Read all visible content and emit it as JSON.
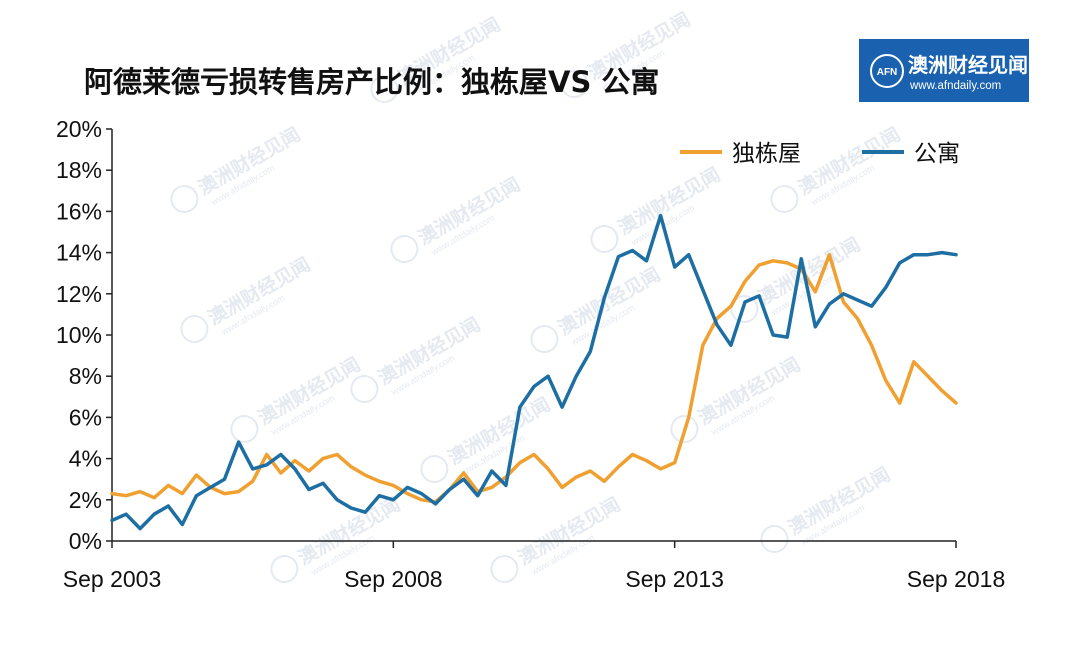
{
  "title": "阿德莱德亏损转售房产比例：独栋屋VS 公寓",
  "logo": {
    "badge": "AFN",
    "name": "澳洲财经见闻",
    "url": "www.afndaily.com"
  },
  "colors": {
    "house": "#f0a030",
    "unit": "#1d6fa3",
    "logo_bg": "#1a62b0"
  },
  "chart_data": {
    "type": "line",
    "title": "阿德莱德亏损转售房产比例：独栋屋VS 公寓",
    "ylim": [
      0,
      20
    ],
    "y_ticks": [
      "0%",
      "2%",
      "4%",
      "6%",
      "8%",
      "10%",
      "12%",
      "14%",
      "16%",
      "18%",
      "20%"
    ],
    "x_ticks": [
      "Sep 2003",
      "Sep 2008",
      "Sep 2013",
      "Sep 2018"
    ],
    "x_tick_positions": [
      2003.67,
      2008.67,
      2013.67,
      2018.67
    ],
    "xlim": [
      2003.67,
      2018.67
    ],
    "grid": false,
    "legend_position": "top-right",
    "series": [
      {
        "name": "独栋屋",
        "color": "#f0a030",
        "points": [
          [
            2003.67,
            2.3
          ],
          [
            2003.92,
            2.2
          ],
          [
            2004.17,
            2.4
          ],
          [
            2004.42,
            2.1
          ],
          [
            2004.67,
            2.7
          ],
          [
            2004.92,
            2.3
          ],
          [
            2005.17,
            3.2
          ],
          [
            2005.42,
            2.6
          ],
          [
            2005.67,
            2.3
          ],
          [
            2005.92,
            2.4
          ],
          [
            2006.17,
            2.9
          ],
          [
            2006.42,
            4.2
          ],
          [
            2006.67,
            3.3
          ],
          [
            2006.92,
            3.9
          ],
          [
            2007.17,
            3.4
          ],
          [
            2007.42,
            4.0
          ],
          [
            2007.67,
            4.2
          ],
          [
            2007.92,
            3.6
          ],
          [
            2008.17,
            3.2
          ],
          [
            2008.42,
            2.9
          ],
          [
            2008.67,
            2.7
          ],
          [
            2008.92,
            2.3
          ],
          [
            2009.17,
            2.0
          ],
          [
            2009.42,
            1.9
          ],
          [
            2009.67,
            2.5
          ],
          [
            2009.92,
            3.3
          ],
          [
            2010.17,
            2.4
          ],
          [
            2010.42,
            2.6
          ],
          [
            2010.67,
            3.1
          ],
          [
            2010.92,
            3.8
          ],
          [
            2011.17,
            4.2
          ],
          [
            2011.42,
            3.5
          ],
          [
            2011.67,
            2.6
          ],
          [
            2011.92,
            3.1
          ],
          [
            2012.17,
            3.4
          ],
          [
            2012.42,
            2.9
          ],
          [
            2012.67,
            3.6
          ],
          [
            2012.92,
            4.2
          ],
          [
            2013.17,
            3.9
          ],
          [
            2013.42,
            3.5
          ],
          [
            2013.67,
            3.8
          ],
          [
            2013.92,
            6.0
          ],
          [
            2014.17,
            9.5
          ],
          [
            2014.42,
            10.8
          ],
          [
            2014.67,
            11.4
          ],
          [
            2014.92,
            12.6
          ],
          [
            2015.17,
            13.4
          ],
          [
            2015.42,
            13.6
          ],
          [
            2015.67,
            13.5
          ],
          [
            2015.92,
            13.2
          ],
          [
            2016.17,
            12.1
          ],
          [
            2016.42,
            13.9
          ],
          [
            2016.67,
            11.6
          ],
          [
            2016.92,
            10.8
          ],
          [
            2017.17,
            9.5
          ],
          [
            2017.42,
            7.8
          ],
          [
            2017.67,
            6.7
          ],
          [
            2017.92,
            8.7
          ],
          [
            2018.17,
            8.0
          ],
          [
            2018.42,
            7.3
          ],
          [
            2018.67,
            6.7
          ]
        ]
      },
      {
        "name": "公寓",
        "color": "#1d6fa3",
        "points": [
          [
            2003.67,
            1.0
          ],
          [
            2003.92,
            1.3
          ],
          [
            2004.17,
            0.6
          ],
          [
            2004.42,
            1.3
          ],
          [
            2004.67,
            1.7
          ],
          [
            2004.92,
            0.8
          ],
          [
            2005.17,
            2.2
          ],
          [
            2005.42,
            2.6
          ],
          [
            2005.67,
            3.0
          ],
          [
            2005.92,
            4.8
          ],
          [
            2006.17,
            3.5
          ],
          [
            2006.42,
            3.7
          ],
          [
            2006.67,
            4.2
          ],
          [
            2006.92,
            3.5
          ],
          [
            2007.17,
            2.5
          ],
          [
            2007.42,
            2.8
          ],
          [
            2007.67,
            2.0
          ],
          [
            2007.92,
            1.6
          ],
          [
            2008.17,
            1.4
          ],
          [
            2008.42,
            2.2
          ],
          [
            2008.67,
            2.0
          ],
          [
            2008.92,
            2.6
          ],
          [
            2009.17,
            2.3
          ],
          [
            2009.42,
            1.8
          ],
          [
            2009.67,
            2.5
          ],
          [
            2009.92,
            3.0
          ],
          [
            2010.17,
            2.2
          ],
          [
            2010.42,
            3.4
          ],
          [
            2010.67,
            2.7
          ],
          [
            2010.92,
            6.5
          ],
          [
            2011.17,
            7.5
          ],
          [
            2011.42,
            8.0
          ],
          [
            2011.67,
            6.5
          ],
          [
            2011.92,
            8.0
          ],
          [
            2012.17,
            9.2
          ],
          [
            2012.42,
            11.8
          ],
          [
            2012.67,
            13.8
          ],
          [
            2012.92,
            14.1
          ],
          [
            2013.17,
            13.6
          ],
          [
            2013.42,
            15.8
          ],
          [
            2013.67,
            13.3
          ],
          [
            2013.92,
            13.9
          ],
          [
            2014.17,
            12.2
          ],
          [
            2014.42,
            10.5
          ],
          [
            2014.67,
            9.5
          ],
          [
            2014.92,
            11.6
          ],
          [
            2015.17,
            11.9
          ],
          [
            2015.42,
            10.0
          ],
          [
            2015.67,
            9.9
          ],
          [
            2015.92,
            13.7
          ],
          [
            2016.17,
            10.4
          ],
          [
            2016.42,
            11.5
          ],
          [
            2016.67,
            12.0
          ],
          [
            2016.92,
            11.7
          ],
          [
            2017.17,
            11.4
          ],
          [
            2017.42,
            12.3
          ],
          [
            2017.67,
            13.5
          ],
          [
            2017.92,
            13.9
          ],
          [
            2018.17,
            13.9
          ],
          [
            2018.42,
            14.0
          ],
          [
            2018.67,
            13.9
          ]
        ]
      }
    ]
  }
}
